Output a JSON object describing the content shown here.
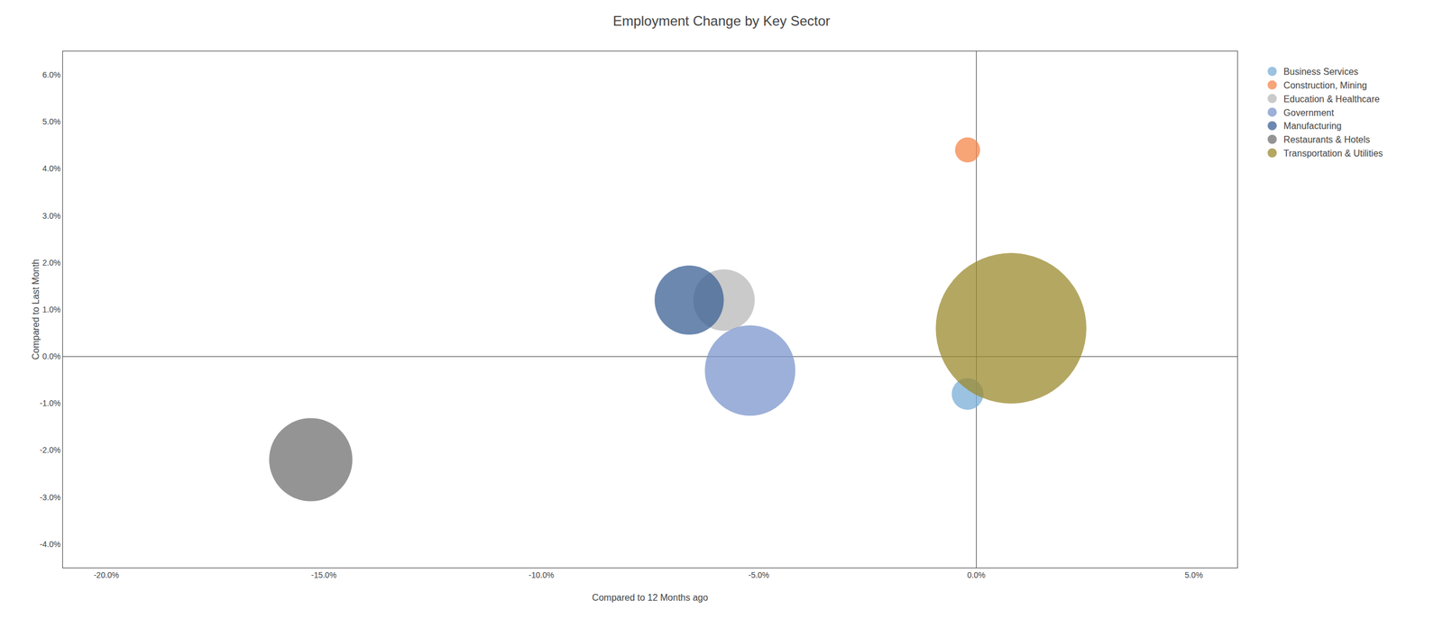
{
  "chart_data": {
    "type": "scatter",
    "title": "Employment Change by Key Sector",
    "xlabel": "Compared to 12 Months ago",
    "ylabel": "Compared to Last Month",
    "xlim": [
      -0.21,
      0.06
    ],
    "ylim": [
      -0.045,
      0.065
    ],
    "xticks": [
      {
        "value": -0.2,
        "label": "-20.0%"
      },
      {
        "value": -0.15,
        "label": "-15.0%"
      },
      {
        "value": -0.1,
        "label": "-10.0%"
      },
      {
        "value": -0.05,
        "label": "-5.0%"
      },
      {
        "value": 0.0,
        "label": "0.0%"
      },
      {
        "value": 0.05,
        "label": "5.0%"
      }
    ],
    "yticks": [
      {
        "value": -0.04,
        "label": "-4.0%"
      },
      {
        "value": -0.03,
        "label": "-3.0%"
      },
      {
        "value": -0.02,
        "label": "-2.0%"
      },
      {
        "value": -0.01,
        "label": "-1.0%"
      },
      {
        "value": 0.0,
        "label": "0.0%"
      },
      {
        "value": 0.01,
        "label": "1.0%"
      },
      {
        "value": 0.02,
        "label": "2.0%"
      },
      {
        "value": 0.03,
        "label": "3.0%"
      },
      {
        "value": 0.04,
        "label": "4.0%"
      },
      {
        "value": 0.05,
        "label": "5.0%"
      },
      {
        "value": 0.06,
        "label": "6.0%"
      }
    ],
    "grid": false,
    "legend": "right",
    "series": [
      {
        "name": "Business Services",
        "color": "#7aaed6",
        "x": [
          -0.002
        ],
        "values": [
          -0.008
        ],
        "sizes": [
          800
        ]
      },
      {
        "name": "Construction, Mining",
        "color": "#f4864a",
        "x": [
          -0.002
        ],
        "values": [
          0.044
        ],
        "sizes": [
          500
        ]
      },
      {
        "name": "Education & Healthcare",
        "color": "#b8b8b8",
        "x": [
          -0.058
        ],
        "values": [
          0.012
        ],
        "sizes": [
          3000
        ]
      },
      {
        "name": "Government",
        "color": "#7b96cc",
        "x": [
          -0.052
        ],
        "values": [
          -0.003
        ],
        "sizes": [
          6500
        ]
      },
      {
        "name": "Manufacturing",
        "color": "#3b6094",
        "x": [
          -0.066
        ],
        "values": [
          0.012
        ],
        "sizes": [
          3800
        ]
      },
      {
        "name": "Restaurants & Hotels",
        "color": "#707070",
        "x": [
          -0.153
        ],
        "values": [
          -0.022
        ],
        "sizes": [
          5500
        ]
      },
      {
        "name": "Transportation & Utilities",
        "color": "#9b8a2e",
        "x": [
          0.008
        ],
        "values": [
          0.006
        ],
        "sizes": [
          18000
        ]
      }
    ]
  }
}
